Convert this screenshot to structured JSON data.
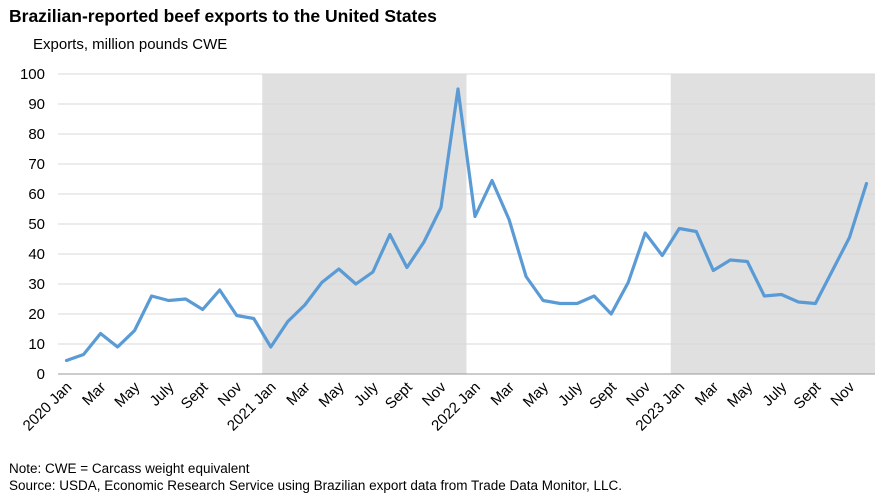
{
  "chart_data": {
    "type": "line",
    "title": "Brazilian-reported beef exports to the United States",
    "subtitle": "Exports, million pounds CWE",
    "ylim": [
      0,
      100
    ],
    "y_ticks": [
      0,
      10,
      20,
      30,
      40,
      50,
      60,
      70,
      80,
      90,
      100
    ],
    "grid": "horizontal",
    "shaded_years": [
      "2021",
      "2023"
    ],
    "line_color": "#5b9bd5",
    "shade_color": "#e0e0e0",
    "x": [
      "2020 Jan",
      "2020 Feb",
      "2020 Mar",
      "2020 Apr",
      "2020 May",
      "2020 Jun",
      "2020 July",
      "2020 Aug",
      "2020 Sept",
      "2020 Oct",
      "2020 Nov",
      "2020 Dec",
      "2021 Jan",
      "2021 Feb",
      "2021 Mar",
      "2021 Apr",
      "2021 May",
      "2021 Jun",
      "2021 July",
      "2021 Aug",
      "2021 Sept",
      "2021 Oct",
      "2021 Nov",
      "2021 Dec",
      "2022 Jan",
      "2022 Feb",
      "2022 Mar",
      "2022 Apr",
      "2022 May",
      "2022 Jun",
      "2022 July",
      "2022 Aug",
      "2022 Sept",
      "2022 Oct",
      "2022 Nov",
      "2022 Dec",
      "2023 Jan",
      "2023 Feb",
      "2023 Mar",
      "2023 Apr",
      "2023 May",
      "2023 Jun",
      "2023 July",
      "2023 Aug",
      "2023 Sept",
      "2023 Oct",
      "2023 Nov",
      "2023 Dec"
    ],
    "x_tick_labels": [
      "2020 Jan",
      "Mar",
      "May",
      "July",
      "Sept",
      "Nov",
      "2021 Jan",
      "Mar",
      "May",
      "July",
      "Sept",
      "Nov",
      "2022 Jan",
      "Mar",
      "May",
      "July",
      "Sept",
      "Nov",
      "2023 Jan",
      "Mar",
      "May",
      "July",
      "Sept",
      "Nov"
    ],
    "series": [
      {
        "values": [
          4.5,
          6.5,
          13.5,
          9,
          14.5,
          26,
          24.5,
          25,
          21.5,
          28,
          19.5,
          18.5,
          9,
          17.5,
          23,
          30.5,
          35,
          30,
          34,
          46.5,
          35.5,
          44,
          55.5,
          95,
          52.5,
          64.5,
          51.5,
          32.5,
          24.5,
          23.5,
          23.5,
          26,
          20,
          30.5,
          47,
          39.5,
          48.5,
          47.5,
          34.5,
          38,
          37.5,
          26,
          26.5,
          24,
          23.5,
          34.5,
          45.5,
          63.5
        ]
      }
    ]
  },
  "notes": {
    "note": "Note: CWE = Carcass weight equivalent",
    "source": "Source: USDA, Economic Research Service using Brazilian export data from Trade Data Monitor, LLC."
  }
}
